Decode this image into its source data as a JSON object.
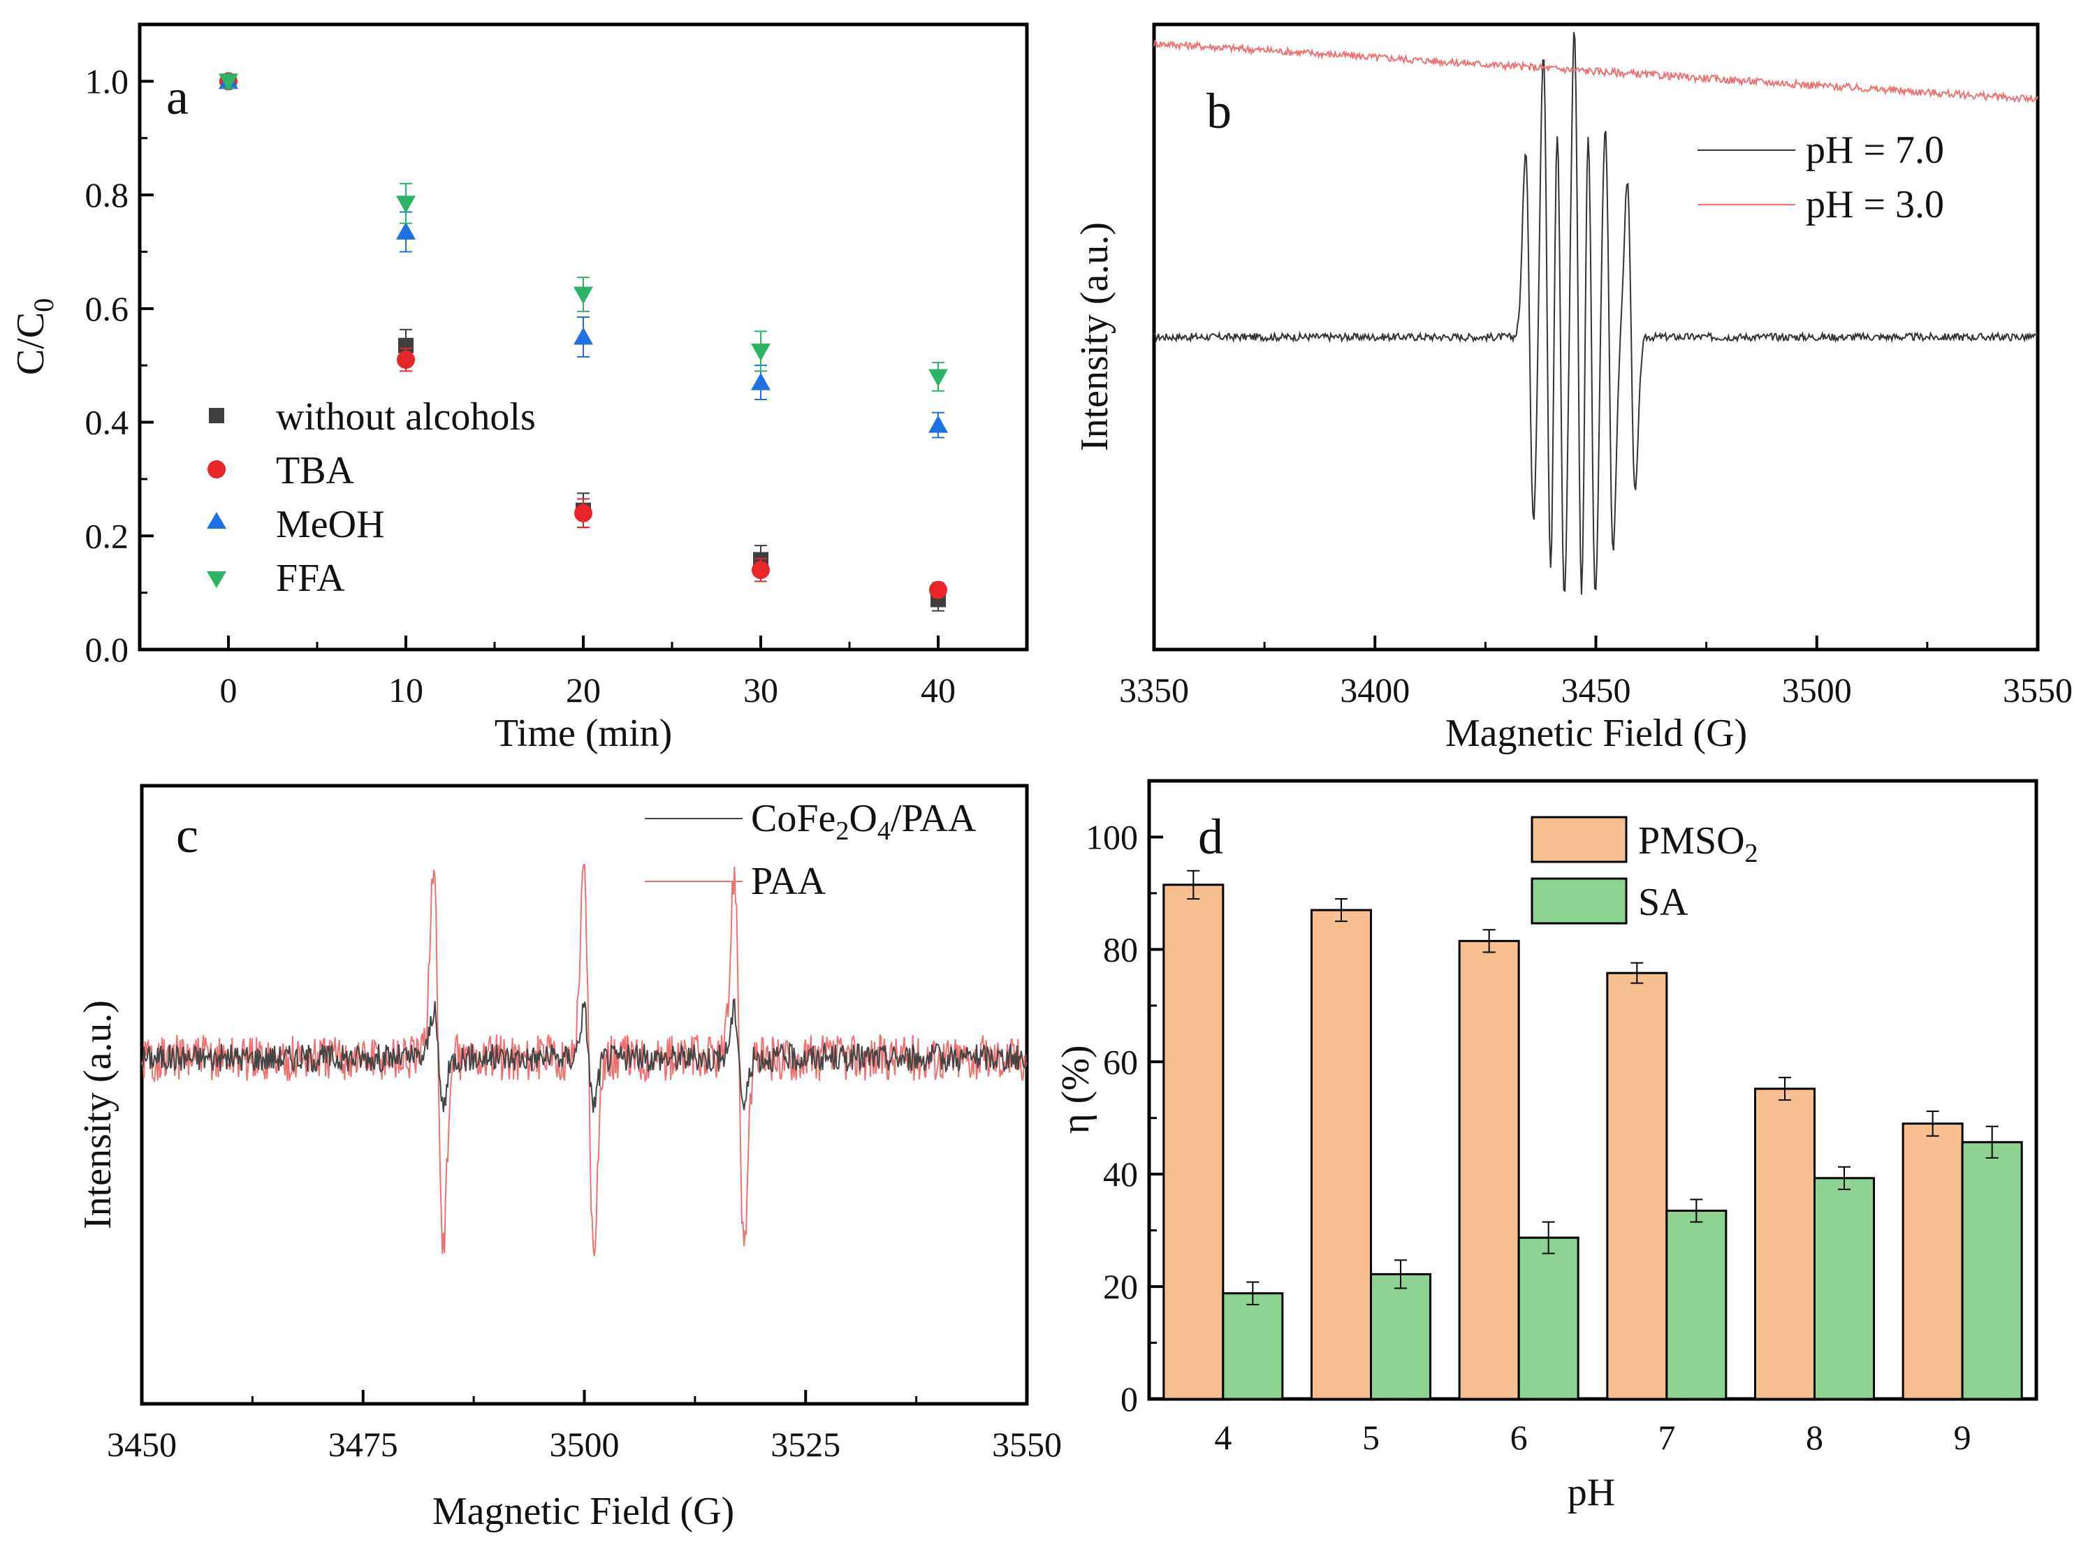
{
  "chart_data": [
    {
      "panel": "a",
      "type": "scatter",
      "xlabel": "Time (min)",
      "ylabel_main": "C/C",
      "ylabel_sub": "0",
      "xlim": [
        -5,
        45
      ],
      "ylim": [
        0,
        1.1
      ],
      "xticks": [
        0,
        10,
        20,
        30,
        40
      ],
      "xtick_labels": [
        "0",
        "10",
        "20",
        "30",
        "40"
      ],
      "yticks": [
        0.0,
        0.2,
        0.4,
        0.6,
        0.8,
        1.0
      ],
      "ytick_labels": [
        "0.0",
        "0.2",
        "0.4",
        "0.6",
        "0.8",
        "1.0"
      ],
      "legend_position": "middle-left",
      "x": [
        0,
        10,
        20,
        30,
        40
      ],
      "series": [
        {
          "name": "without alcohols",
          "marker": "square",
          "color": "#3f3f3f",
          "values": [
            1.0,
            0.535,
            0.245,
            0.158,
            0.088
          ],
          "errors": [
            0.012,
            0.028,
            0.03,
            0.025,
            0.02
          ]
        },
        {
          "name": "TBA",
          "marker": "circle",
          "color": "#e8262a",
          "values": [
            1.0,
            0.51,
            0.24,
            0.14,
            0.105
          ],
          "errors": [
            0.012,
            0.02,
            0.025,
            0.02,
            0.012
          ]
        },
        {
          "name": "MeOH",
          "marker": "triangle-up",
          "color": "#1f6fe5",
          "values": [
            1.0,
            0.735,
            0.55,
            0.47,
            0.395
          ],
          "errors": [
            0.012,
            0.035,
            0.035,
            0.03,
            0.022
          ]
        },
        {
          "name": "FFA",
          "marker": "triangle-down",
          "color": "#2bb366",
          "values": [
            1.0,
            0.785,
            0.625,
            0.525,
            0.48
          ],
          "errors": [
            0.012,
            0.035,
            0.03,
            0.035,
            0.025
          ]
        }
      ]
    },
    {
      "panel": "b",
      "type": "line",
      "xlabel": "Magnetic Field (G)",
      "ylabel": "Intensity (a.u.)",
      "xlim": [
        3350,
        3550
      ],
      "xticks": [
        3350,
        3400,
        3450,
        3500,
        3550
      ],
      "xtick_labels": [
        "3350",
        "3400",
        "3450",
        "3500",
        "3550"
      ],
      "legend_position": "top-right",
      "series": [
        {
          "name": "pH = 7.0",
          "color": "#333333",
          "baseline": 0.5,
          "peak_fields": [
            3435,
            3439,
            3442,
            3446,
            3449,
            3453,
            3458
          ],
          "peak_amplitudes": [
            0.3,
            0.46,
            0.42,
            0.5,
            0.42,
            0.34,
            0.25
          ]
        },
        {
          "name": "pH = 3.0",
          "color": "#f07070",
          "baseline": 0.97,
          "trend": -0.09,
          "peak_fields": [],
          "peak_amplitudes": []
        }
      ]
    },
    {
      "panel": "c",
      "type": "line",
      "xlabel": "Magnetic Field (G)",
      "ylabel": "Intensity (a.u.)",
      "xlim": [
        3450,
        3550
      ],
      "xticks": [
        3450,
        3475,
        3500,
        3525,
        3550
      ],
      "xtick_labels": [
        "3450",
        "3475",
        "3500",
        "3525",
        "3550"
      ],
      "legend_position": "top-right",
      "series": [
        {
          "name_main": "CoFe",
          "name_sub1": "2",
          "name_mid": "O",
          "name_sub2": "4",
          "name_end": "/PAA",
          "color": "#444444",
          "baseline": 0.56,
          "peak_fields": [
            3483.5,
            3500.5,
            3517.5
          ],
          "peak_amplitude": 0.14
        },
        {
          "name": "PAA",
          "color": "#f07070",
          "baseline": 0.56,
          "peak_fields": [
            3483.5,
            3500.5,
            3517.5
          ],
          "peak_amplitude": 0.55
        }
      ]
    },
    {
      "panel": "d",
      "type": "bar",
      "xlabel": "pH",
      "ylabel": "η (%)",
      "ylim": [
        0,
        110
      ],
      "yticks": [
        0,
        20,
        40,
        60,
        80,
        100
      ],
      "ytick_labels": [
        "0",
        "20",
        "40",
        "60",
        "80",
        "100"
      ],
      "categories": [
        "4",
        "5",
        "6",
        "7",
        "8",
        "9"
      ],
      "legend_position": "top-center",
      "series": [
        {
          "name_main": "PMSO",
          "name_sub": "2",
          "color": "#f8c08e",
          "values": [
            91.5,
            87,
            81.5,
            75.8,
            55.2,
            49
          ],
          "errors": [
            2.5,
            2,
            2,
            1.8,
            2,
            2.2
          ]
        },
        {
          "name": "SA",
          "color": "#8ed491",
          "values": [
            18.8,
            22.2,
            28.7,
            33.5,
            39.3,
            45.7
          ],
          "errors": [
            2,
            2.5,
            2.8,
            2,
            2,
            2.8
          ]
        }
      ]
    }
  ]
}
